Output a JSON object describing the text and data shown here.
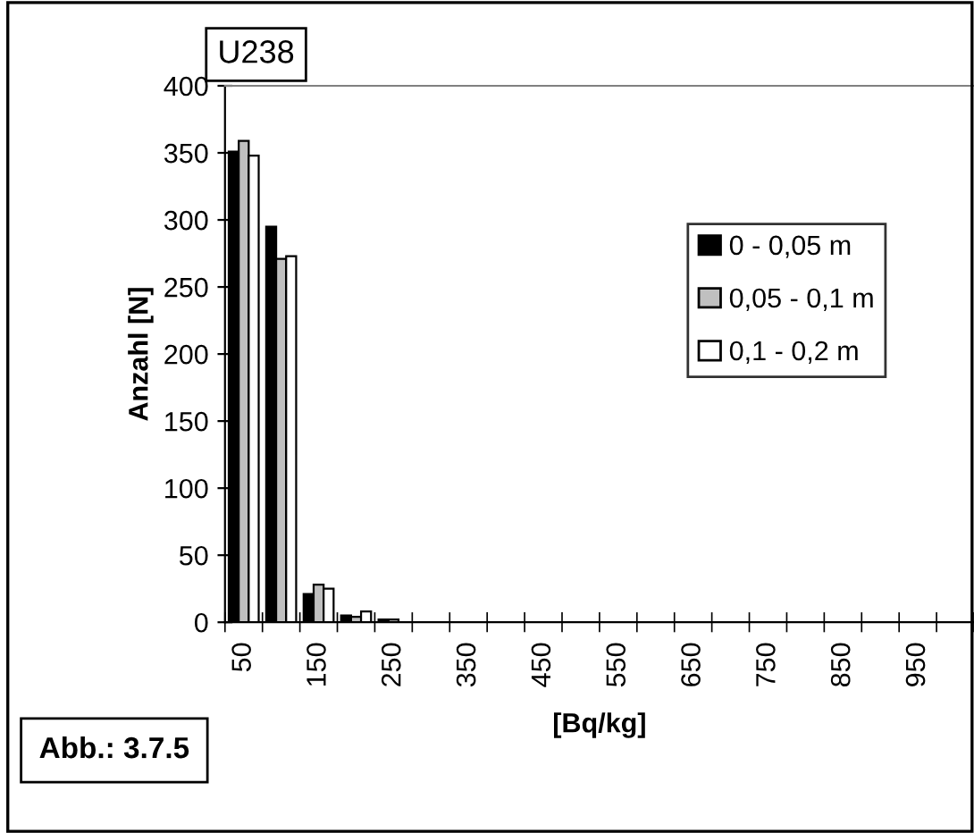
{
  "chart_data": {
    "type": "bar",
    "title": "U238",
    "xlabel": "[Bq/kg]",
    "ylabel": "Anzahl [N]",
    "categories": [
      "50",
      null,
      "150",
      null,
      "250",
      null,
      "350",
      null,
      "450",
      null,
      "550",
      null,
      "650",
      null,
      "750",
      null,
      "850",
      null,
      "950",
      null
    ],
    "series": [
      {
        "name": "0 - 0,05 m",
        "color": "#000000",
        "values": [
          351,
          295,
          21,
          5,
          2,
          0,
          0,
          0,
          0,
          0,
          0,
          0,
          0,
          0,
          0,
          0,
          0,
          0,
          0,
          0
        ]
      },
      {
        "name": "0,05 - 0,1 m",
        "color": "#c0c0c0",
        "values": [
          359,
          271,
          28,
          4,
          2,
          0,
          0,
          0,
          0,
          0,
          0,
          0,
          0,
          0,
          0,
          0,
          0,
          0,
          0,
          0
        ]
      },
      {
        "name": "0,1 - 0,2 m",
        "color": "#ffffff",
        "values": [
          348,
          273,
          25,
          8,
          null,
          0,
          0,
          0,
          0,
          0,
          0,
          0,
          0,
          0,
          0,
          0,
          0,
          0,
          0,
          0
        ]
      }
    ],
    "ylim": [
      0,
      400
    ],
    "yticks": [
      0,
      50,
      100,
      150,
      200,
      250,
      300,
      350,
      400
    ],
    "grid": false,
    "legend": "right",
    "annotations": [
      "Abb.: 3.7.5"
    ]
  }
}
